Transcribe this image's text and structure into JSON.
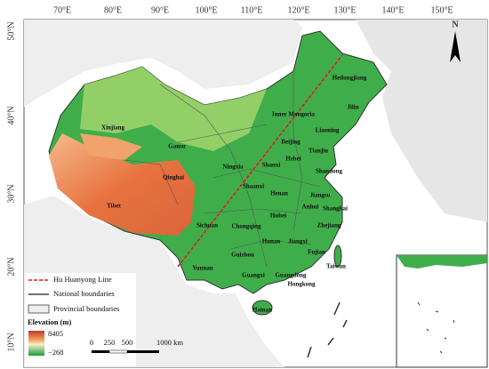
{
  "map": {
    "longitude_labels": [
      "70°E",
      "80°E",
      "90°E",
      "100°E",
      "110°E",
      "120°E",
      "130°E",
      "140°E",
      "150°E"
    ],
    "latitude_labels": [
      "50°N",
      "40°N",
      "30°N",
      "20°N",
      "10°N"
    ],
    "north_label": "N",
    "provinces": [
      "Heilongjiang",
      "Jilin",
      "Inner Mongoria",
      "Liaoning",
      "Xinjiang",
      "Gansu",
      "Beijing",
      "Tianjin",
      "Hebei",
      "Ningxia",
      "Shanxi",
      "Shandong",
      "Qinghai",
      "Shaanxi",
      "Henan",
      "Jiangsu",
      "Tibet",
      "Anhui",
      "Shanghai",
      "Hubei",
      "Sichuan",
      "Chongqing",
      "Zhejiang",
      "Hunan",
      "Jiangxi",
      "Fujian",
      "Guizhou",
      "Yunnan",
      "Taiwan",
      "Guangxi",
      "Guangdong",
      "Hongkong",
      "Hainan"
    ]
  },
  "legend": {
    "items": [
      "Hu Huanyong Line",
      "National boundaries",
      "Provincial boundaries"
    ],
    "elevation": {
      "title": "Elevation (m)",
      "max": "8405",
      "min": "−268"
    },
    "scale_bar": [
      "0",
      "250",
      "500",
      "1000 km"
    ]
  }
}
